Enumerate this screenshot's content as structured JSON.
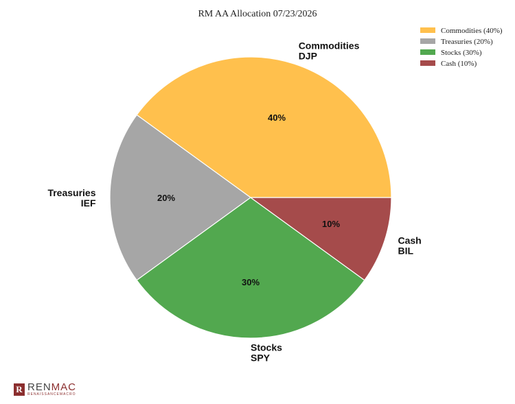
{
  "chart_data": {
    "type": "pie",
    "title": "RM AA Allocation 07/23/2026",
    "slices": [
      {
        "name": "Commodities",
        "ticker": "DJP",
        "value": 40,
        "pct_label": "40%",
        "legend": "Commodities (40%)",
        "color": "#FFC04D"
      },
      {
        "name": "Treasuries",
        "ticker": "IEF",
        "value": 20,
        "pct_label": "20%",
        "legend": "Treasuries (20%)",
        "color": "#A6A6A6"
      },
      {
        "name": "Stocks",
        "ticker": "SPY",
        "value": 30,
        "pct_label": "30%",
        "legend": "Stocks (30%)",
        "color": "#52A84F"
      },
      {
        "name": "Cash",
        "ticker": "BIL",
        "value": 10,
        "pct_label": "10%",
        "legend": "Cash (10%)",
        "color": "#A54B4B"
      }
    ],
    "start_angle_deg": 0,
    "direction": "counterclockwise",
    "legend_position": "top-right"
  },
  "logo": {
    "mark": "R",
    "main_left": "REN",
    "main_right": "MAC",
    "sub": "RENAISSANCEMACRO"
  }
}
